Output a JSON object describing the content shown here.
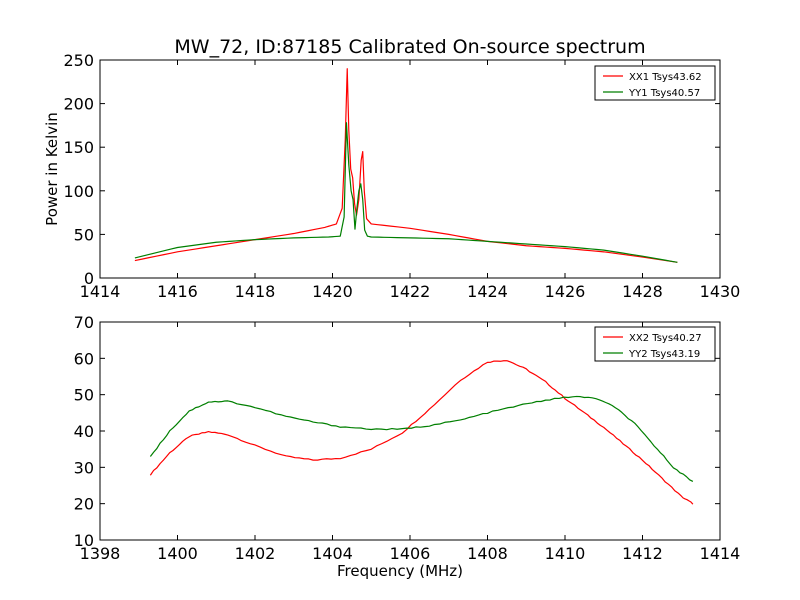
{
  "title": "MW_72, ID:87185 Calibrated On-source spectrum",
  "colors": {
    "red": "#ff0000",
    "green": "#007f00",
    "axes": "#000000"
  },
  "chart_data": [
    {
      "type": "line",
      "title": "MW_72, ID:87185 Calibrated On-source spectrum",
      "xlabel": "",
      "ylabel": "Power in Kelvin",
      "xlim": [
        1414,
        1430
      ],
      "ylim": [
        0,
        250
      ],
      "xticks": [
        1414,
        1416,
        1418,
        1420,
        1422,
        1424,
        1426,
        1428,
        1430
      ],
      "yticks": [
        0,
        50,
        100,
        150,
        200,
        250
      ],
      "grid": false,
      "legend": "top-right",
      "series": [
        {
          "name": "XX1 Tsys43.62",
          "color": "#ff0000",
          "x": [
            1414.9,
            1416,
            1417,
            1418,
            1419,
            1419.8,
            1420.1,
            1420.25,
            1420.33,
            1420.38,
            1420.42,
            1420.47,
            1420.52,
            1420.57,
            1420.62,
            1420.68,
            1420.74,
            1420.78,
            1420.82,
            1420.88,
            1421,
            1422,
            1423,
            1424,
            1425,
            1426,
            1427,
            1428,
            1428.9
          ],
          "y": [
            20,
            30,
            37,
            44,
            51,
            58,
            62,
            80,
            160,
            240,
            170,
            125,
            115,
            85,
            72,
            90,
            135,
            145,
            100,
            68,
            62,
            57,
            50,
            42,
            37,
            34,
            30,
            24,
            18
          ]
        },
        {
          "name": "YY1 Tsys40.57",
          "color": "#007f00",
          "x": [
            1414.9,
            1416,
            1417,
            1418,
            1419,
            1419.9,
            1420.2,
            1420.3,
            1420.36,
            1420.42,
            1420.48,
            1420.53,
            1420.58,
            1420.63,
            1420.68,
            1420.73,
            1420.78,
            1420.83,
            1420.9,
            1421,
            1422,
            1423,
            1424,
            1425,
            1426,
            1427,
            1428,
            1428.9
          ],
          "y": [
            23,
            35,
            41,
            44,
            46,
            47,
            48,
            70,
            178,
            130,
            100,
            90,
            56,
            80,
            100,
            108,
            90,
            55,
            48,
            47,
            46,
            45,
            42,
            39,
            36,
            32,
            25,
            18
          ]
        }
      ]
    },
    {
      "type": "line",
      "title": "",
      "xlabel": "Frequency (MHz)",
      "ylabel": "",
      "xlim": [
        1398,
        1414
      ],
      "ylim": [
        10,
        70
      ],
      "xticks": [
        1398,
        1400,
        1402,
        1404,
        1406,
        1408,
        1410,
        1412,
        1414
      ],
      "yticks": [
        10,
        20,
        30,
        40,
        50,
        60,
        70
      ],
      "grid": false,
      "legend": "top-right",
      "series": [
        {
          "name": "XX2 Tsys40.27",
          "color": "#ff0000",
          "x": [
            1399.3,
            1399.8,
            1400.3,
            1400.8,
            1401.3,
            1402,
            1402.8,
            1403.5,
            1404.2,
            1405,
            1405.8,
            1406.5,
            1407.3,
            1408,
            1408.5,
            1409,
            1409.5,
            1410,
            1410.5,
            1411,
            1411.5,
            1412,
            1412.5,
            1413,
            1413.3
          ],
          "y": [
            28,
            34,
            38.5,
            39.8,
            39,
            36,
            33,
            32,
            32.5,
            35,
            39.5,
            46,
            54,
            59,
            59.5,
            57,
            53.5,
            49,
            45,
            41,
            36.5,
            32,
            27,
            22,
            20
          ]
        },
        {
          "name": "YY2 Tsys43.19",
          "color": "#007f00",
          "x": [
            1399.3,
            1399.8,
            1400.3,
            1400.8,
            1401.3,
            1402,
            1402.8,
            1403.5,
            1404.2,
            1405,
            1405.8,
            1406.5,
            1407.3,
            1408,
            1408.8,
            1409.5,
            1410.2,
            1410.8,
            1411.3,
            1411.8,
            1412.3,
            1412.8,
            1413.3
          ],
          "y": [
            33,
            40,
            45.5,
            48,
            48.2,
            46.5,
            44,
            42.5,
            41.2,
            40.5,
            40.5,
            41.5,
            43,
            45,
            47,
            48.5,
            49.5,
            49,
            46.5,
            42,
            36,
            30,
            26
          ]
        }
      ]
    }
  ]
}
